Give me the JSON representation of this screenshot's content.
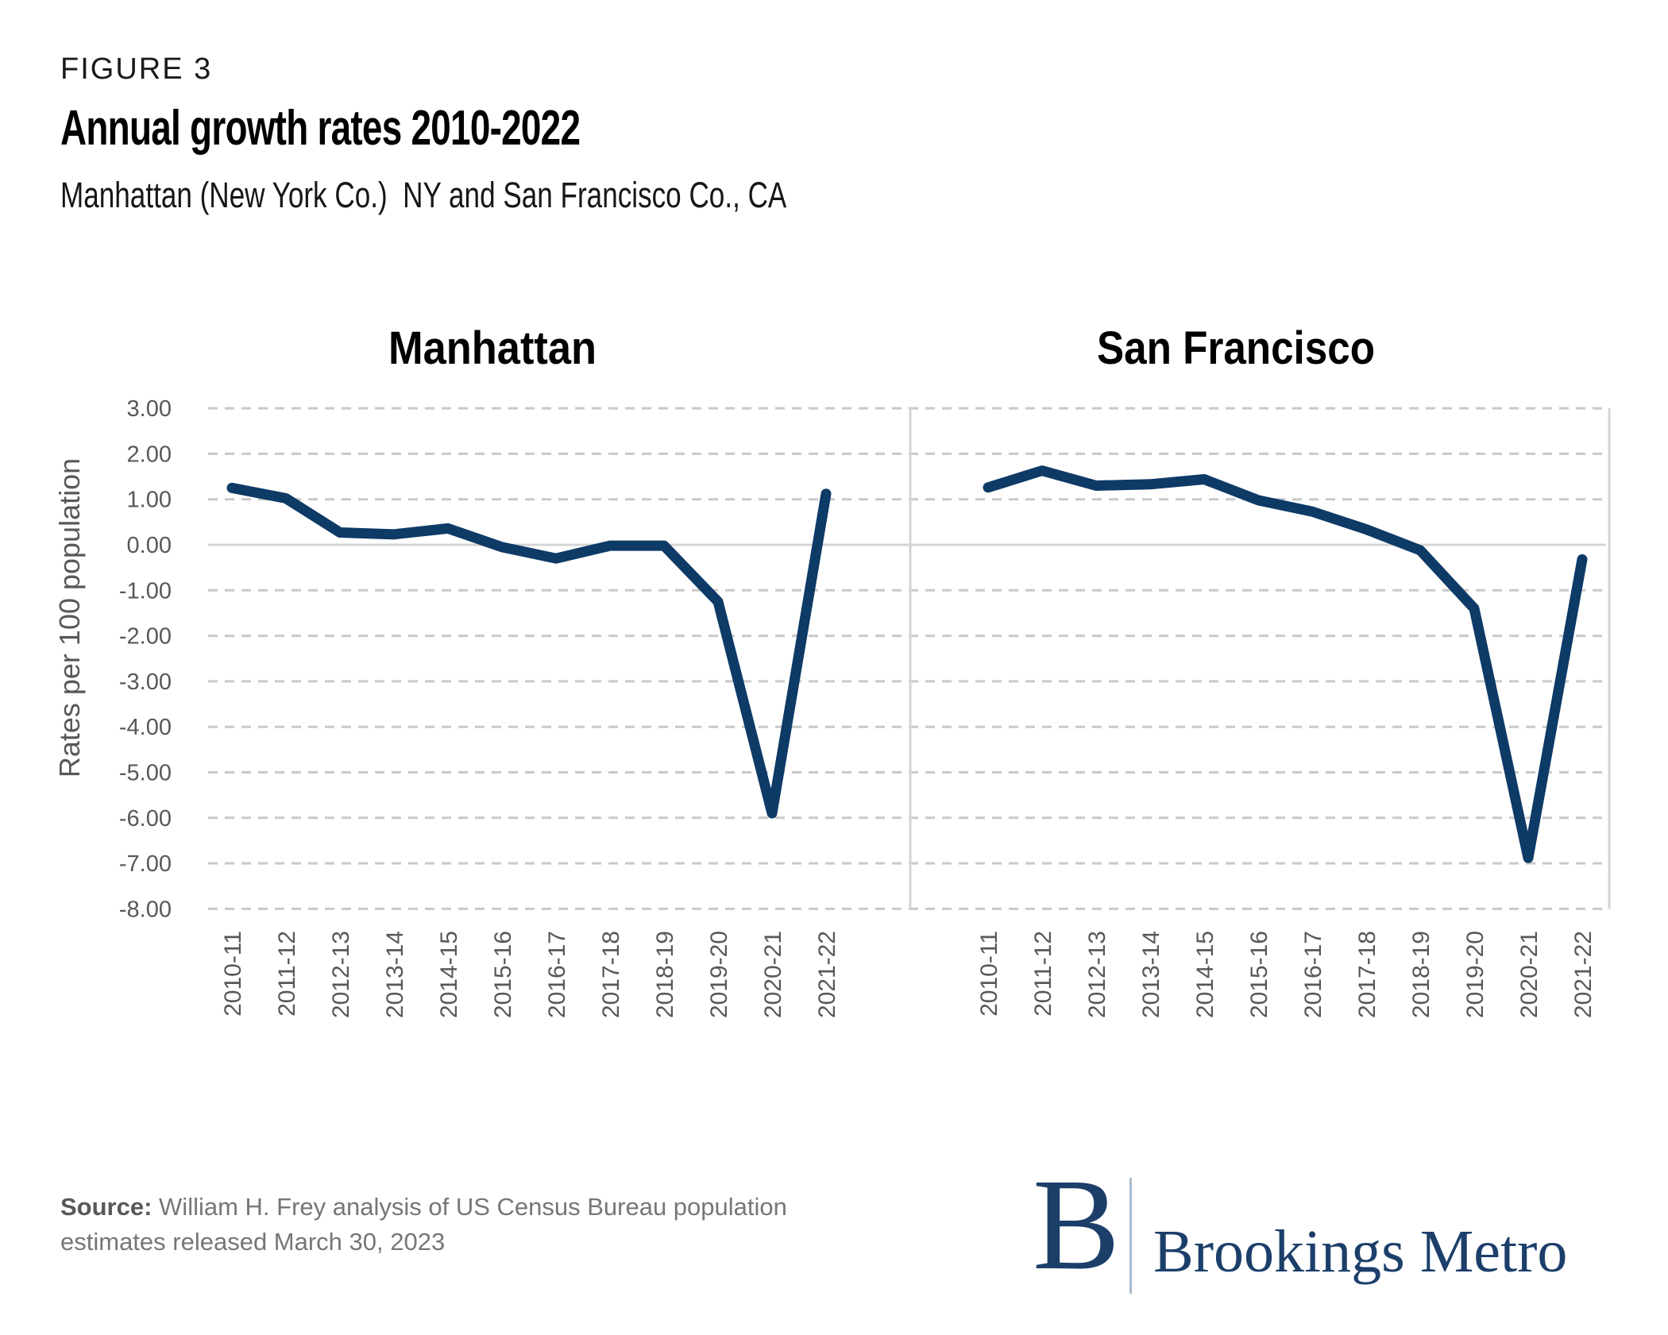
{
  "header": {
    "figure_label": "FIGURE 3",
    "title": "Annual growth rates 2010-2022",
    "subtitle": "Manhattan (New York Co.)  NY and San Francisco Co., CA"
  },
  "footer": {
    "source_label": "Source:",
    "source_text": "William H. Frey analysis of US Census Bureau population estimates released March 30, 2023"
  },
  "logo": {
    "letter": "B",
    "name": "Brookings Metro"
  },
  "colors": {
    "line": "#0e3a66",
    "grid": "#c9c9c9",
    "zero_line": "#d4d4d4",
    "frame_line": "#d4d4d4",
    "axis_text": "#58585a",
    "logo_navy": "#1c3f6a",
    "logo_divider": "#a6bacb"
  },
  "chart_data": {
    "type": "line",
    "layout": "two-panel-shared-y",
    "title": "Annual growth rates 2010-2022",
    "ylabel": "Rates per 100 population",
    "ylim": [
      -8,
      3
    ],
    "ytick_step": 1,
    "grid": "horizontal-dashed",
    "categories": [
      "2010-11",
      "2011-12",
      "2012-13",
      "2013-14",
      "2014-15",
      "2015-16",
      "2016-17",
      "2017-18",
      "2018-19",
      "2019-20",
      "2020-21",
      "2021-22"
    ],
    "series": [
      {
        "name": "Manhattan",
        "values": [
          1.25,
          1.02,
          0.27,
          0.23,
          0.36,
          -0.05,
          -0.3,
          -0.02,
          -0.02,
          -1.25,
          -5.9,
          1.12
        ]
      },
      {
        "name": "San Francisco",
        "values": [
          1.26,
          1.63,
          1.3,
          1.33,
          1.44,
          0.98,
          0.73,
          0.34,
          -0.12,
          -1.4,
          -6.88,
          -0.32
        ]
      }
    ]
  }
}
